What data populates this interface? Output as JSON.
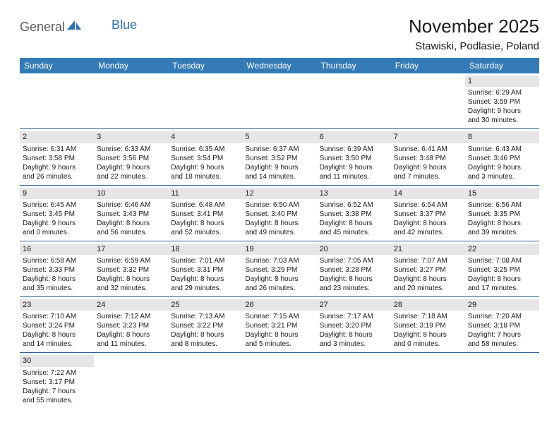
{
  "logo": {
    "part1": "General",
    "part2": "Blue"
  },
  "title": "November 2025",
  "location": "Stawiski, Podlasie, Poland",
  "colors": {
    "header_bg": "#337ab7",
    "header_text": "#ffffff",
    "daynum_bg": "#e6e6e6",
    "week_border": "#2a5b8f",
    "logo_gray": "#5c5c5c",
    "logo_blue": "#2a72b5"
  },
  "weekdays": [
    "Sunday",
    "Monday",
    "Tuesday",
    "Wednesday",
    "Thursday",
    "Friday",
    "Saturday"
  ],
  "weeks": [
    [
      {
        "n": "",
        "sr": "",
        "ss": "",
        "dl1": "",
        "dl2": ""
      },
      {
        "n": "",
        "sr": "",
        "ss": "",
        "dl1": "",
        "dl2": ""
      },
      {
        "n": "",
        "sr": "",
        "ss": "",
        "dl1": "",
        "dl2": ""
      },
      {
        "n": "",
        "sr": "",
        "ss": "",
        "dl1": "",
        "dl2": ""
      },
      {
        "n": "",
        "sr": "",
        "ss": "",
        "dl1": "",
        "dl2": ""
      },
      {
        "n": "",
        "sr": "",
        "ss": "",
        "dl1": "",
        "dl2": ""
      },
      {
        "n": "1",
        "sr": "Sunrise: 6:29 AM",
        "ss": "Sunset: 3:59 PM",
        "dl1": "Daylight: 9 hours",
        "dl2": "and 30 minutes."
      }
    ],
    [
      {
        "n": "2",
        "sr": "Sunrise: 6:31 AM",
        "ss": "Sunset: 3:58 PM",
        "dl1": "Daylight: 9 hours",
        "dl2": "and 26 minutes."
      },
      {
        "n": "3",
        "sr": "Sunrise: 6:33 AM",
        "ss": "Sunset: 3:56 PM",
        "dl1": "Daylight: 9 hours",
        "dl2": "and 22 minutes."
      },
      {
        "n": "4",
        "sr": "Sunrise: 6:35 AM",
        "ss": "Sunset: 3:54 PM",
        "dl1": "Daylight: 9 hours",
        "dl2": "and 18 minutes."
      },
      {
        "n": "5",
        "sr": "Sunrise: 6:37 AM",
        "ss": "Sunset: 3:52 PM",
        "dl1": "Daylight: 9 hours",
        "dl2": "and 14 minutes."
      },
      {
        "n": "6",
        "sr": "Sunrise: 6:39 AM",
        "ss": "Sunset: 3:50 PM",
        "dl1": "Daylight: 9 hours",
        "dl2": "and 11 minutes."
      },
      {
        "n": "7",
        "sr": "Sunrise: 6:41 AM",
        "ss": "Sunset: 3:48 PM",
        "dl1": "Daylight: 9 hours",
        "dl2": "and 7 minutes."
      },
      {
        "n": "8",
        "sr": "Sunrise: 6:43 AM",
        "ss": "Sunset: 3:46 PM",
        "dl1": "Daylight: 9 hours",
        "dl2": "and 3 minutes."
      }
    ],
    [
      {
        "n": "9",
        "sr": "Sunrise: 6:45 AM",
        "ss": "Sunset: 3:45 PM",
        "dl1": "Daylight: 9 hours",
        "dl2": "and 0 minutes."
      },
      {
        "n": "10",
        "sr": "Sunrise: 6:46 AM",
        "ss": "Sunset: 3:43 PM",
        "dl1": "Daylight: 8 hours",
        "dl2": "and 56 minutes."
      },
      {
        "n": "11",
        "sr": "Sunrise: 6:48 AM",
        "ss": "Sunset: 3:41 PM",
        "dl1": "Daylight: 8 hours",
        "dl2": "and 52 minutes."
      },
      {
        "n": "12",
        "sr": "Sunrise: 6:50 AM",
        "ss": "Sunset: 3:40 PM",
        "dl1": "Daylight: 8 hours",
        "dl2": "and 49 minutes."
      },
      {
        "n": "13",
        "sr": "Sunrise: 6:52 AM",
        "ss": "Sunset: 3:38 PM",
        "dl1": "Daylight: 8 hours",
        "dl2": "and 45 minutes."
      },
      {
        "n": "14",
        "sr": "Sunrise: 6:54 AM",
        "ss": "Sunset: 3:37 PM",
        "dl1": "Daylight: 8 hours",
        "dl2": "and 42 minutes."
      },
      {
        "n": "15",
        "sr": "Sunrise: 6:56 AM",
        "ss": "Sunset: 3:35 PM",
        "dl1": "Daylight: 8 hours",
        "dl2": "and 39 minutes."
      }
    ],
    [
      {
        "n": "16",
        "sr": "Sunrise: 6:58 AM",
        "ss": "Sunset: 3:33 PM",
        "dl1": "Daylight: 8 hours",
        "dl2": "and 35 minutes."
      },
      {
        "n": "17",
        "sr": "Sunrise: 6:59 AM",
        "ss": "Sunset: 3:32 PM",
        "dl1": "Daylight: 8 hours",
        "dl2": "and 32 minutes."
      },
      {
        "n": "18",
        "sr": "Sunrise: 7:01 AM",
        "ss": "Sunset: 3:31 PM",
        "dl1": "Daylight: 8 hours",
        "dl2": "and 29 minutes."
      },
      {
        "n": "19",
        "sr": "Sunrise: 7:03 AM",
        "ss": "Sunset: 3:29 PM",
        "dl1": "Daylight: 8 hours",
        "dl2": "and 26 minutes."
      },
      {
        "n": "20",
        "sr": "Sunrise: 7:05 AM",
        "ss": "Sunset: 3:28 PM",
        "dl1": "Daylight: 8 hours",
        "dl2": "and 23 minutes."
      },
      {
        "n": "21",
        "sr": "Sunrise: 7:07 AM",
        "ss": "Sunset: 3:27 PM",
        "dl1": "Daylight: 8 hours",
        "dl2": "and 20 minutes."
      },
      {
        "n": "22",
        "sr": "Sunrise: 7:08 AM",
        "ss": "Sunset: 3:25 PM",
        "dl1": "Daylight: 8 hours",
        "dl2": "and 17 minutes."
      }
    ],
    [
      {
        "n": "23",
        "sr": "Sunrise: 7:10 AM",
        "ss": "Sunset: 3:24 PM",
        "dl1": "Daylight: 8 hours",
        "dl2": "and 14 minutes."
      },
      {
        "n": "24",
        "sr": "Sunrise: 7:12 AM",
        "ss": "Sunset: 3:23 PM",
        "dl1": "Daylight: 8 hours",
        "dl2": "and 11 minutes."
      },
      {
        "n": "25",
        "sr": "Sunrise: 7:13 AM",
        "ss": "Sunset: 3:22 PM",
        "dl1": "Daylight: 8 hours",
        "dl2": "and 8 minutes."
      },
      {
        "n": "26",
        "sr": "Sunrise: 7:15 AM",
        "ss": "Sunset: 3:21 PM",
        "dl1": "Daylight: 8 hours",
        "dl2": "and 5 minutes."
      },
      {
        "n": "27",
        "sr": "Sunrise: 7:17 AM",
        "ss": "Sunset: 3:20 PM",
        "dl1": "Daylight: 8 hours",
        "dl2": "and 3 minutes."
      },
      {
        "n": "28",
        "sr": "Sunrise: 7:18 AM",
        "ss": "Sunset: 3:19 PM",
        "dl1": "Daylight: 8 hours",
        "dl2": "and 0 minutes."
      },
      {
        "n": "29",
        "sr": "Sunrise: 7:20 AM",
        "ss": "Sunset: 3:18 PM",
        "dl1": "Daylight: 7 hours",
        "dl2": "and 58 minutes."
      }
    ],
    [
      {
        "n": "30",
        "sr": "Sunrise: 7:22 AM",
        "ss": "Sunset: 3:17 PM",
        "dl1": "Daylight: 7 hours",
        "dl2": "and 55 minutes."
      },
      {
        "n": "",
        "sr": "",
        "ss": "",
        "dl1": "",
        "dl2": ""
      },
      {
        "n": "",
        "sr": "",
        "ss": "",
        "dl1": "",
        "dl2": ""
      },
      {
        "n": "",
        "sr": "",
        "ss": "",
        "dl1": "",
        "dl2": ""
      },
      {
        "n": "",
        "sr": "",
        "ss": "",
        "dl1": "",
        "dl2": ""
      },
      {
        "n": "",
        "sr": "",
        "ss": "",
        "dl1": "",
        "dl2": ""
      },
      {
        "n": "",
        "sr": "",
        "ss": "",
        "dl1": "",
        "dl2": ""
      }
    ]
  ]
}
